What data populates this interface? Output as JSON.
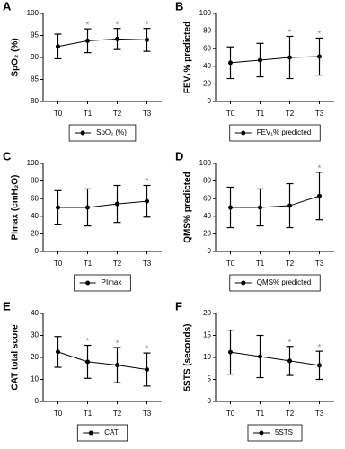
{
  "chart_data": [
    {
      "type": "line",
      "label": "A",
      "y_label": "SpO₂ (%)",
      "categories": [
        "T0",
        "T1",
        "T2",
        "T3"
      ],
      "series": [
        {
          "name": "SpO₂ (%)",
          "color": "#000000",
          "values": [
            92.5,
            93.8,
            94.2,
            94.0
          ],
          "errors": [
            2.8,
            2.7,
            2.4,
            2.6
          ]
        }
      ],
      "significance": [
        null,
        "*",
        "*",
        "*"
      ],
      "ylim": [
        80,
        100
      ],
      "yticks": [
        80,
        85,
        90,
        95,
        100
      ]
    },
    {
      "type": "line",
      "label": "B",
      "y_label": "FEV₁% predicted",
      "categories": [
        "T0",
        "T1",
        "T2",
        "T3"
      ],
      "series": [
        {
          "name": "FEV₁% predicted",
          "color": "#000000",
          "values": [
            44,
            47,
            50,
            51
          ],
          "errors": [
            18,
            19,
            24,
            21
          ]
        }
      ],
      "significance": [
        null,
        null,
        "*",
        "*"
      ],
      "ylim": [
        0,
        100
      ],
      "yticks": [
        0,
        20,
        40,
        60,
        80,
        100
      ]
    },
    {
      "type": "line",
      "label": "C",
      "y_label": "PImax (cmH₂O)",
      "categories": [
        "T0",
        "T1",
        "T2",
        "T3"
      ],
      "series": [
        {
          "name": "PImax",
          "color": "#000000",
          "values": [
            50,
            50,
            54,
            57
          ],
          "errors": [
            19,
            21,
            21,
            18
          ]
        }
      ],
      "significance": [
        null,
        null,
        null,
        "*"
      ],
      "ylim": [
        0,
        100
      ],
      "yticks": [
        0,
        20,
        40,
        60,
        80,
        100
      ]
    },
    {
      "type": "line",
      "label": "D",
      "y_label": "QMS% predicted",
      "categories": [
        "T0",
        "T1",
        "T2",
        "T3"
      ],
      "series": [
        {
          "name": "QMS% predicted",
          "color": "#000000",
          "values": [
            50,
            50,
            52,
            63
          ],
          "errors": [
            23,
            21,
            25,
            27
          ]
        }
      ],
      "significance": [
        null,
        null,
        null,
        "*"
      ],
      "ylim": [
        0,
        100
      ],
      "yticks": [
        0,
        20,
        40,
        60,
        80,
        100
      ]
    },
    {
      "type": "line",
      "label": "E",
      "y_label": "CAT total score",
      "categories": [
        "T0",
        "T1",
        "T2",
        "T3"
      ],
      "series": [
        {
          "name": "CAT",
          "color": "#000000",
          "values": [
            22.5,
            18,
            16.5,
            14.5
          ],
          "errors": [
            7,
            7.5,
            8,
            7.5
          ]
        }
      ],
      "significance": [
        null,
        "*",
        "*",
        "*"
      ],
      "ylim": [
        0,
        40
      ],
      "yticks": [
        0,
        10,
        20,
        30,
        40
      ]
    },
    {
      "type": "line",
      "label": "F",
      "y_label": "5STS (seconds)",
      "categories": [
        "T0",
        "T1",
        "T2",
        "T3"
      ],
      "series": [
        {
          "name": "5STS",
          "color": "#000000",
          "values": [
            11.2,
            10.2,
            9.2,
            8.2
          ],
          "errors": [
            5,
            4.8,
            3.3,
            3.2
          ]
        }
      ],
      "significance": [
        null,
        null,
        "*",
        "*"
      ],
      "ylim": [
        0,
        20
      ],
      "yticks": [
        0,
        5,
        10,
        15,
        20
      ]
    }
  ]
}
